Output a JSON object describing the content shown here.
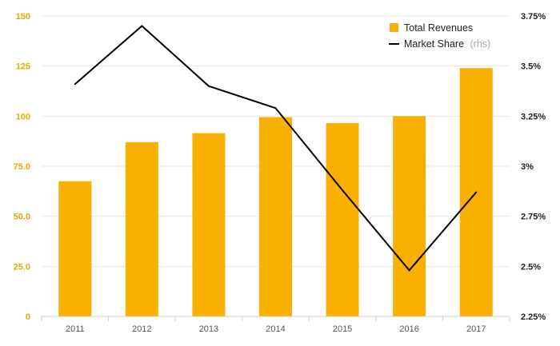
{
  "chart_data": {
    "type": "bar+line",
    "categories": [
      "2011",
      "2012",
      "2013",
      "2014",
      "2015",
      "2016",
      "2017"
    ],
    "series": [
      {
        "name": "Total Revenues",
        "type": "bar",
        "axis": "left",
        "values": [
          67.5,
          87,
          91.5,
          99.5,
          96.5,
          100,
          124
        ]
      },
      {
        "name": "Market Share",
        "name_suffix": "(rhs)",
        "type": "line",
        "axis": "right",
        "values": [
          3.41,
          3.7,
          3.4,
          3.29,
          2.88,
          2.48,
          2.87
        ]
      }
    ],
    "left_axis": {
      "ylim": [
        0,
        150
      ],
      "ticks": [
        {
          "value": 0,
          "label": "0"
        },
        {
          "value": 25,
          "label": "25.0"
        },
        {
          "value": 50,
          "label": "50.0"
        },
        {
          "value": 75,
          "label": "75.0"
        },
        {
          "value": 100,
          "label": "100"
        },
        {
          "value": 125,
          "label": "125"
        },
        {
          "value": 150,
          "label": "150"
        }
      ]
    },
    "right_axis": {
      "ylim": [
        2.25,
        3.75
      ],
      "ticks": [
        {
          "value": 2.25,
          "label": "2.25%"
        },
        {
          "value": 2.5,
          "label": "2.5%"
        },
        {
          "value": 2.75,
          "label": "2.75%"
        },
        {
          "value": 3.0,
          "label": "3%"
        },
        {
          "value": 3.25,
          "label": "3.25%"
        },
        {
          "value": 3.5,
          "label": "3.5%"
        },
        {
          "value": 3.75,
          "label": "3.75%"
        }
      ]
    },
    "grid": true,
    "legend_position": "top-right",
    "colors": {
      "bar": "#f9b000",
      "line": "#000000",
      "grid": "#e6e6e6",
      "left_tick": "#e8a800",
      "right_tick": "#222222"
    }
  }
}
